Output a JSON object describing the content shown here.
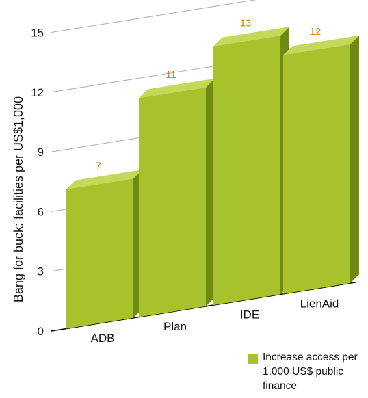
{
  "chart_data": {
    "type": "bar",
    "categories": [
      "ADB",
      "Plan",
      "IDE",
      "LienAid"
    ],
    "values": [
      7,
      11,
      13,
      12
    ],
    "data_labels": [
      "7",
      "11",
      "13",
      "12"
    ],
    "title": "",
    "xlabel": "",
    "ylabel": "Bang for buck: facilities per US$1,000",
    "ylim": [
      0,
      15
    ],
    "yticks": [
      "0",
      "3",
      "6",
      "9",
      "12",
      "15"
    ],
    "grid": true,
    "legend_position": "bottom-right",
    "series": [
      {
        "name": "Increase access per 1,000 US$ public finance",
        "values": [
          7,
          11,
          13,
          12
        ]
      }
    ]
  },
  "legend": {
    "label": "Increase access per 1,000 US$ public finance"
  },
  "colors": {
    "bar_front": "#a8c22c",
    "bar_top": "#c4d85a",
    "bar_side": "#6f8a12",
    "data_label": "#d4800e",
    "gridline": "#aaaaaa",
    "axis": "#000000",
    "text": "#111111"
  }
}
